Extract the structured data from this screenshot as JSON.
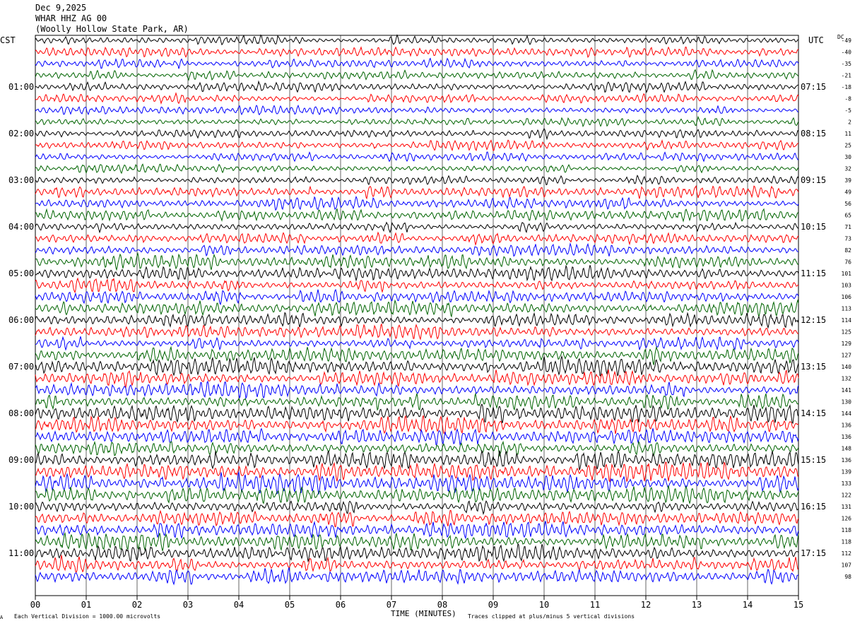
{
  "header": {
    "date": "Dec 9,2025",
    "station": "WHAR HHZ AG 00",
    "location": "(Woolly Hollow State Park, AR)"
  },
  "left_axis_label": "CST",
  "right_axis_label": "UTC",
  "dc_label": "DC",
  "footer": {
    "left": "Each Vertical Division = 1000.00 microvolts",
    "right": "Traces clipped at plus/minus 5 vertical divisions",
    "corner": "A"
  },
  "chart_data": {
    "type": "line",
    "title": "Dec 9,2025 WHAR HHZ AG 00 (Woolly Hollow State Park, AR)",
    "xlabel": "TIME (MINUTES)",
    "xlim": [
      0,
      15
    ],
    "x_ticks": [
      "00",
      "01",
      "02",
      "03",
      "04",
      "05",
      "06",
      "07",
      "08",
      "09",
      "10",
      "11",
      "12",
      "13",
      "14",
      "15"
    ],
    "grid": true,
    "trace_colors": [
      "#000000",
      "#ff0000",
      "#0000ff",
      "#006400"
    ],
    "trace_minutes_per_row": 15,
    "left_time_ticks": [
      "01:00",
      "02:00",
      "03:00",
      "04:00",
      "05:00",
      "06:00",
      "07:00",
      "08:00",
      "09:00",
      "10:00",
      "11:00"
    ],
    "left_time_tick_rows": [
      4,
      8,
      12,
      16,
      20,
      24,
      28,
      32,
      36,
      40,
      44
    ],
    "right_time_ticks": [
      "07:15",
      "08:15",
      "09:15",
      "10:15",
      "11:15",
      "12:15",
      "13:15",
      "14:15",
      "15:15",
      "16:15",
      "17:15"
    ],
    "right_time_tick_rows": [
      4,
      8,
      12,
      16,
      20,
      24,
      28,
      32,
      36,
      40,
      44
    ],
    "dc_offsets": [
      -49,
      -40,
      -35,
      -21,
      -18,
      -8,
      -5,
      2,
      11,
      25,
      30,
      32,
      39,
      49,
      56,
      65,
      71,
      73,
      82,
      76,
      101,
      103,
      106,
      113,
      114,
      125,
      129,
      127,
      140,
      132,
      141,
      130,
      144,
      136,
      136,
      148,
      136,
      139,
      133,
      122,
      131,
      126,
      118,
      118,
      112,
      107,
      98
    ],
    "trace_amplitude_profile": [
      4,
      4,
      4,
      4,
      4,
      4,
      4,
      4,
      4,
      4,
      4,
      4,
      4,
      5,
      5,
      5,
      5,
      5,
      5,
      6,
      6,
      6,
      6,
      6,
      6,
      6,
      6,
      7,
      7,
      7,
      7,
      7,
      8,
      7,
      7,
      7,
      8,
      8,
      8,
      7,
      7,
      7,
      7,
      7,
      7,
      7,
      7
    ]
  }
}
